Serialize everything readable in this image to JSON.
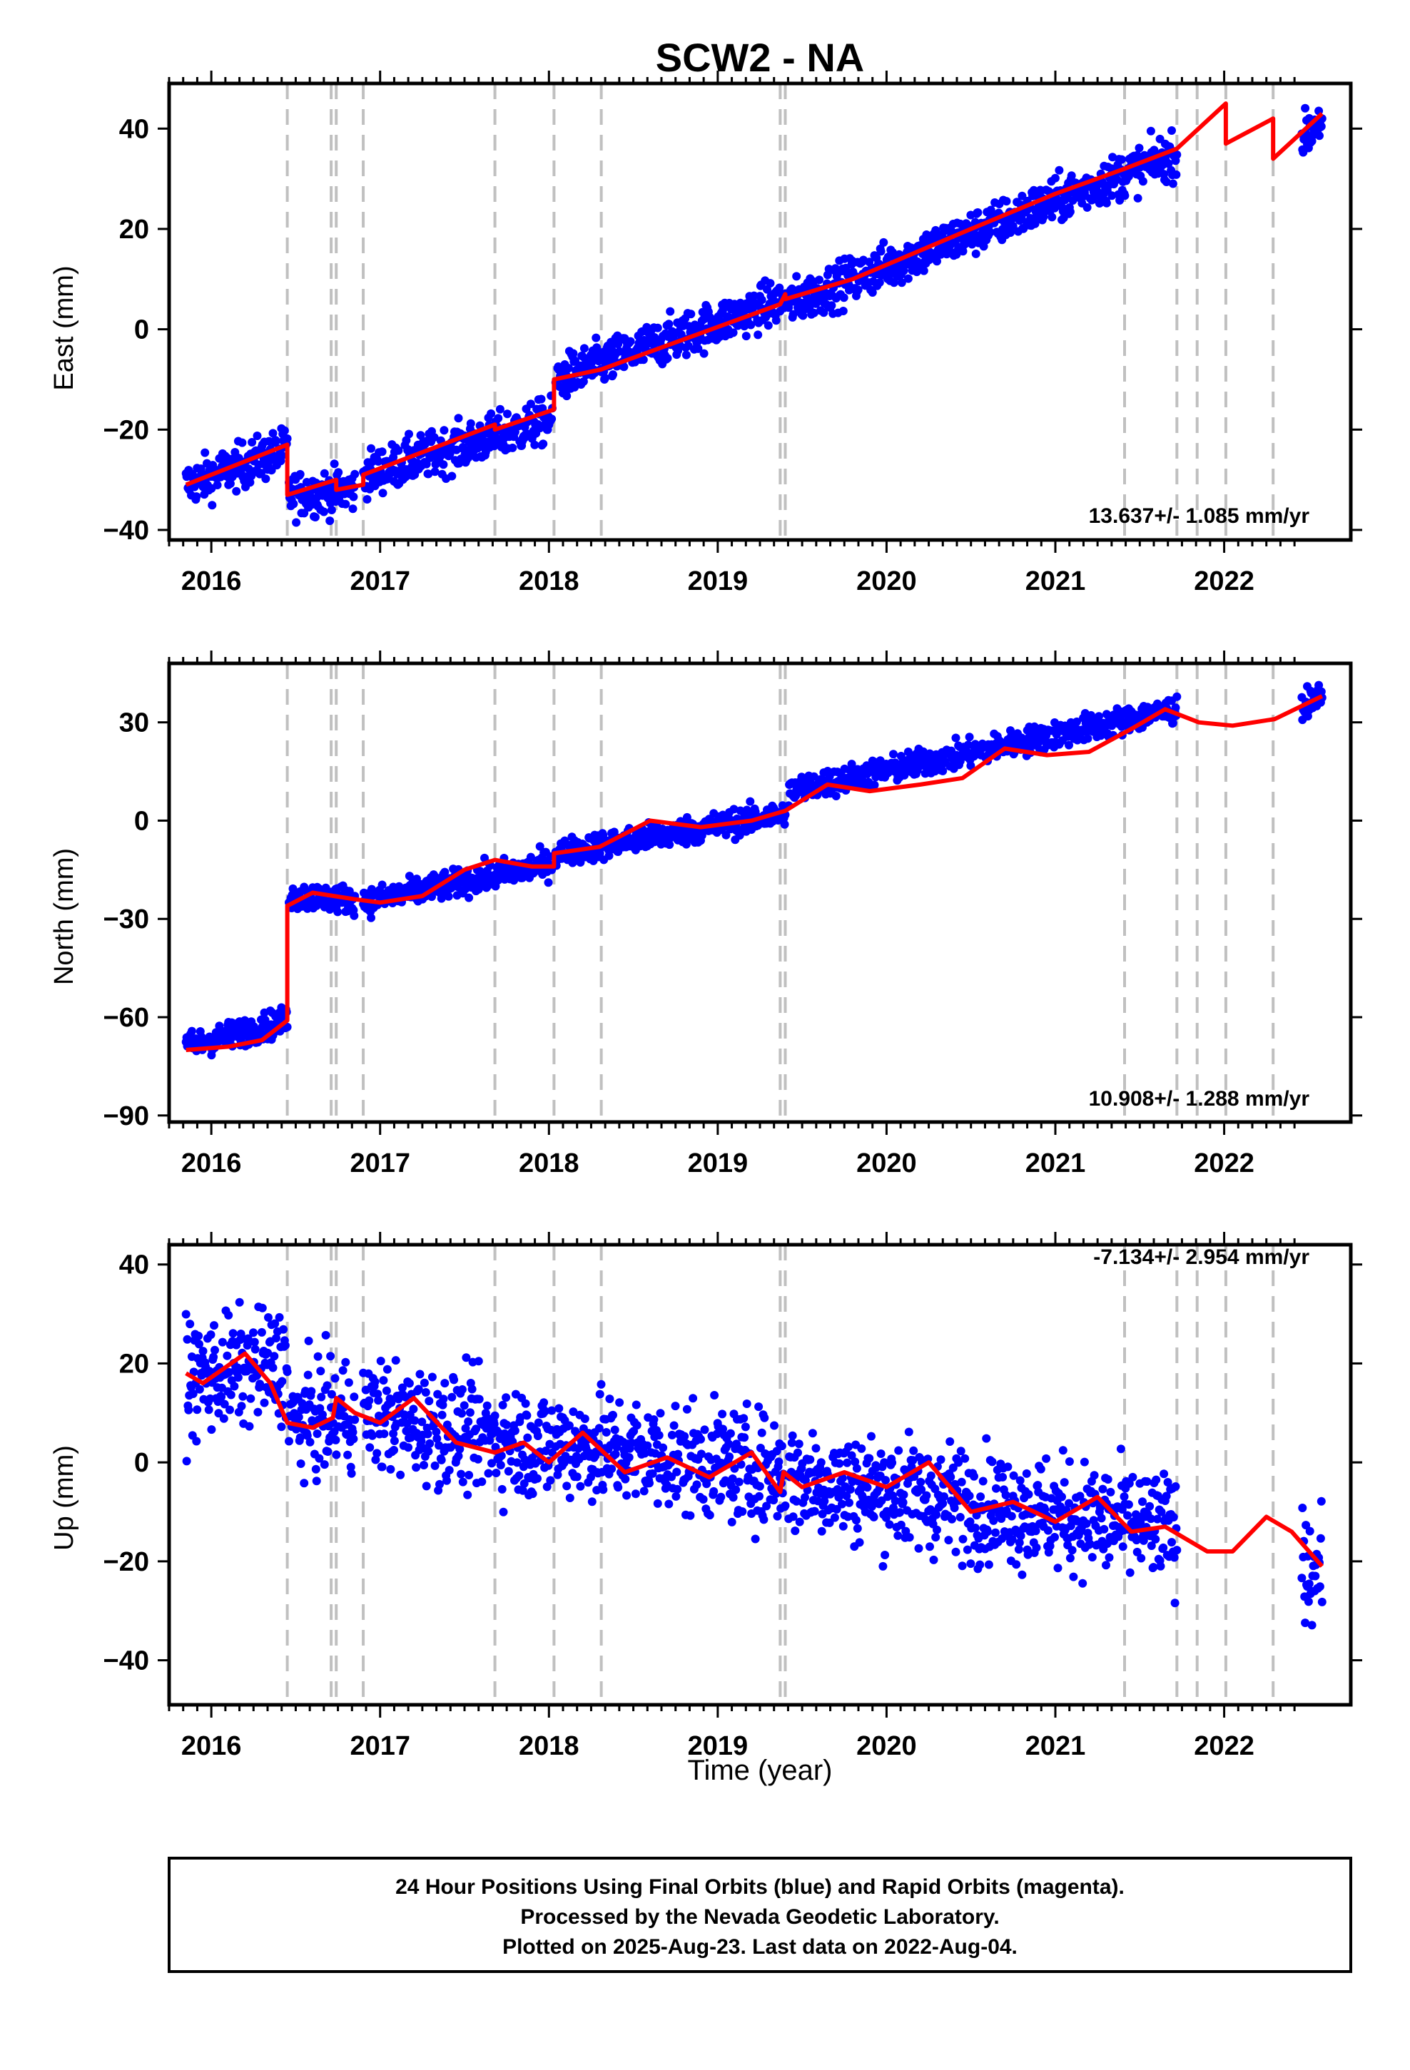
{
  "chart_data": [
    {
      "type": "scatter",
      "title": "SCW2 - NA",
      "ylabel": "East (mm)",
      "xlabel": "",
      "xlim": [
        2015.75,
        2022.75
      ],
      "ylim": [
        -42,
        49
      ],
      "yticks": [
        -40,
        -20,
        0,
        20,
        40
      ],
      "xticks": [
        2016,
        2017,
        2018,
        2019,
        2020,
        2021,
        2022
      ],
      "rate_label": "13.637+/- 1.085 mm/yr",
      "break_years": [
        2016.45,
        2016.71,
        2016.74,
        2016.9,
        2017.68,
        2018.03,
        2018.31,
        2019.37,
        2019.4,
        2021.41,
        2021.72,
        2021.84,
        2022.01,
        2022.29
      ],
      "colors": {
        "points": "#0000ff",
        "model": "#ff0000",
        "breaks": "#c0c0c0"
      },
      "series": [
        {
          "role": "points",
          "spread": 3.2,
          "segments": [
            [
              2015.85,
              2016.45,
              -31,
              -24
            ],
            [
              2016.46,
              2016.85,
              -33,
              -32
            ],
            [
              2016.9,
              2018.02,
              -29,
              -18
            ],
            [
              2018.04,
              2019.4,
              -10,
              6
            ],
            [
              2019.42,
              2021.72,
              5,
              35
            ],
            [
              2022.46,
              2022.58,
              38,
              42
            ]
          ]
        },
        {
          "role": "model",
          "x": [
            2015.85,
            2016.45,
            2016.45,
            2016.74,
            2016.74,
            2016.9,
            2016.9,
            2017.68,
            2017.68,
            2018.03,
            2018.03,
            2018.31,
            2018.8,
            2019.37,
            2019.4,
            2019.4,
            2019.8,
            2020.5,
            2021.0,
            2021.41,
            2021.72,
            2022.01,
            2022.01,
            2022.29,
            2022.29,
            2022.58
          ],
          "y": [
            -31,
            -23,
            -33,
            -30,
            -32,
            -31,
            -29,
            -19,
            -20,
            -16,
            -10,
            -8,
            -2,
            5,
            7,
            6,
            10,
            20,
            27,
            32,
            36,
            45,
            37,
            42,
            34,
            43
          ]
        }
      ]
    },
    {
      "type": "scatter",
      "title": "",
      "ylabel": "North (mm)",
      "xlabel": "",
      "xlim": [
        2015.75,
        2022.75
      ],
      "ylim": [
        -92,
        48
      ],
      "yticks": [
        -90,
        -60,
        -30,
        0,
        30
      ],
      "xticks": [
        2016,
        2017,
        2018,
        2019,
        2020,
        2021,
        2022
      ],
      "rate_label": "10.908+/- 1.288 mm/yr",
      "break_years": [
        2016.45,
        2016.71,
        2016.74,
        2016.9,
        2017.68,
        2018.03,
        2018.31,
        2019.37,
        2019.4,
        2021.41,
        2021.72,
        2021.84,
        2022.01,
        2022.29
      ],
      "colors": {
        "points": "#0000ff",
        "model": "#ff0000",
        "breaks": "#c0c0c0"
      },
      "series": [
        {
          "role": "points",
          "spread": 3.0,
          "segments": [
            [
              2015.85,
              2016.45,
              -69,
              -61
            ],
            [
              2016.46,
              2016.85,
              -23,
              -24
            ],
            [
              2016.9,
              2018.02,
              -25,
              -13
            ],
            [
              2018.04,
              2019.4,
              -10,
              2
            ],
            [
              2019.42,
              2021.72,
              9,
              34
            ],
            [
              2022.46,
              2022.58,
              35,
              38
            ]
          ]
        },
        {
          "role": "model",
          "x": [
            2015.85,
            2016.1,
            2016.3,
            2016.45,
            2016.45,
            2016.6,
            2016.85,
            2017.0,
            2017.25,
            2017.5,
            2017.68,
            2017.9,
            2018.03,
            2018.03,
            2018.3,
            2018.6,
            2018.9,
            2019.2,
            2019.4,
            2019.65,
            2019.9,
            2020.2,
            2020.45,
            2020.7,
            2020.95,
            2021.2,
            2021.45,
            2021.65,
            2021.85,
            2022.05,
            2022.3,
            2022.58
          ],
          "y": [
            -70,
            -69,
            -67,
            -61,
            -26,
            -22,
            -24,
            -25,
            -23,
            -15,
            -12,
            -14,
            -14,
            -10,
            -8,
            0,
            -2,
            0,
            3,
            11,
            9,
            11,
            13,
            22,
            20,
            21,
            28,
            34,
            30,
            29,
            31,
            38
          ]
        }
      ]
    },
    {
      "type": "scatter",
      "title": "",
      "ylabel": "Up (mm)",
      "xlabel": "Time (year)",
      "xlim": [
        2015.75,
        2022.75
      ],
      "ylim": [
        -49,
        44
      ],
      "yticks": [
        -40,
        -20,
        0,
        20,
        40
      ],
      "xticks": [
        2016,
        2017,
        2018,
        2019,
        2020,
        2021,
        2022
      ],
      "rate_label": "-7.134+/- 2.954 mm/yr",
      "break_years": [
        2016.45,
        2016.71,
        2016.74,
        2016.9,
        2017.68,
        2018.03,
        2018.31,
        2019.37,
        2019.4,
        2021.41,
        2021.72,
        2021.84,
        2022.01,
        2022.29
      ],
      "colors": {
        "points": "#0000ff",
        "model": "#ff0000",
        "breaks": "#c0c0c0"
      },
      "series": [
        {
          "role": "points",
          "spread": 8.0,
          "segments": [
            [
              2015.85,
              2016.45,
              17,
              20
            ],
            [
              2016.46,
              2016.85,
              8,
              10
            ],
            [
              2016.9,
              2018.02,
              10,
              3
            ],
            [
              2018.04,
              2019.4,
              4,
              -2
            ],
            [
              2019.42,
              2021.72,
              -3,
              -14
            ],
            [
              2022.46,
              2022.58,
              -20,
              -22
            ]
          ]
        },
        {
          "role": "model",
          "x": [
            2015.85,
            2015.95,
            2016.2,
            2016.35,
            2016.45,
            2016.6,
            2016.72,
            2016.74,
            2016.85,
            2017.0,
            2017.2,
            2017.45,
            2017.68,
            2017.85,
            2018.0,
            2018.2,
            2018.45,
            2018.7,
            2018.95,
            2019.2,
            2019.37,
            2019.39,
            2019.5,
            2019.75,
            2020.0,
            2020.25,
            2020.5,
            2020.75,
            2021.0,
            2021.25,
            2021.45,
            2021.65,
            2021.9,
            2022.05,
            2022.25,
            2022.4,
            2022.58
          ],
          "y": [
            18,
            16,
            22,
            16,
            8,
            7,
            9,
            13,
            10,
            8,
            13,
            4,
            2,
            4,
            0,
            6,
            -2,
            1,
            -3,
            2,
            -6,
            -2,
            -5,
            -2,
            -5,
            0,
            -10,
            -8,
            -12,
            -7,
            -14,
            -13,
            -18,
            -18,
            -11,
            -14,
            -21
          ]
        }
      ]
    }
  ],
  "footer": {
    "line1": "24 Hour Positions Using Final Orbits (blue) and Rapid Orbits (magenta).",
    "line2": "Processed by the Nevada Geodetic Laboratory.",
    "line3": "Plotted on 2025-Aug-23. Last data on 2022-Aug-04."
  }
}
